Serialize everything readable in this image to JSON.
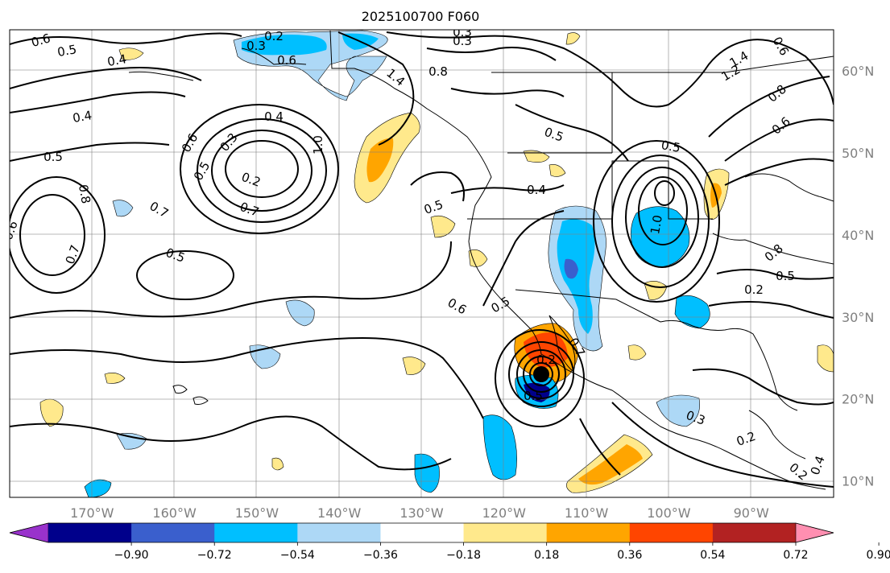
{
  "title": "2025100700 F060",
  "map": {
    "lon_range": [
      -180,
      -80
    ],
    "lat_range": [
      8,
      65
    ],
    "lon_ticks": [
      "170°W",
      "160°W",
      "150°W",
      "140°W",
      "130°W",
      "120°W",
      "110°W",
      "100°W",
      "90°W"
    ],
    "lat_ticks": [
      "60°N",
      "50°N",
      "40°N",
      "30°N",
      "20°N",
      "10°N"
    ]
  },
  "colorbar": {
    "tick_labels": [
      "−0.90",
      "−0.72",
      "−0.54",
      "−0.36",
      "−0.18",
      "0.18",
      "0.36",
      "0.54",
      "0.72",
      "0.90"
    ],
    "colors": [
      "#9932cc",
      "#00008b",
      "#3a5fcd",
      "#00bfff",
      "#add8f6",
      "#ffffff",
      "#ffe98c",
      "#ffa500",
      "#ff4500",
      "#b22222",
      "#ff8fb1"
    ]
  },
  "contour_labels": [
    "0.6",
    "0.5",
    "0.4",
    "0.2",
    "0.3",
    "0.6",
    "0.3",
    "0.3",
    "0.8",
    "1.4",
    "1.2",
    "1.4",
    "0.8",
    "0.4",
    "0.5",
    "0.4",
    "0.6",
    "0.3",
    "0.5",
    "0.2",
    "0.7",
    "1.0",
    "0.5",
    "0.4",
    "0.5",
    "0.6",
    "0.5",
    "1.0",
    "0.8",
    "0.7",
    "0.6",
    "0.5",
    "0.7",
    "0.6",
    "0.5",
    "0.2",
    "0.7",
    "0.5",
    "0.6",
    "0.5",
    "0.2",
    "0.3",
    "0.2",
    "0.2",
    "0.4",
    "0.8"
  ]
}
